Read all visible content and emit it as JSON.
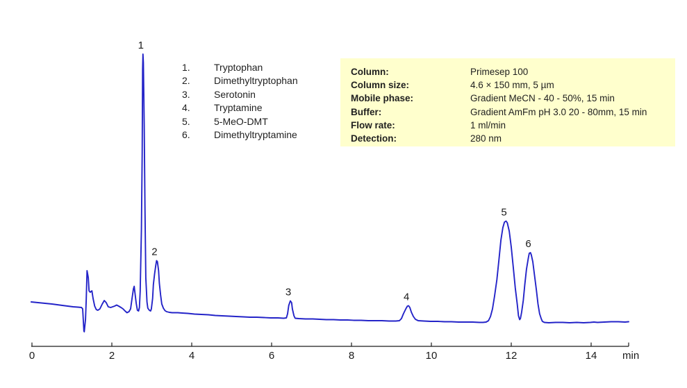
{
  "chart_data": {
    "type": "line",
    "chart_kind": "hplc-chromatogram",
    "title": "",
    "xlabel": "min",
    "ylabel": "",
    "x_ticks": [
      0,
      2,
      4,
      6,
      8,
      10,
      12,
      14
    ],
    "xlim": [
      0,
      15
    ],
    "grid": false,
    "legend_position": "none",
    "trace_color": "#2323c8",
    "axis_color": "#1a1a1a",
    "peaks": [
      {
        "number": "1",
        "compound": "Tryptophan",
        "rt_min": 2.78,
        "apex_signal": 402
      },
      {
        "number": "2",
        "compound": "Dimethyltryptophan",
        "rt_min": 3.12,
        "apex_signal": 104.5
      },
      {
        "number": "3",
        "compound": "Serotonin",
        "rt_min": 6.47,
        "apex_signal": 46.5
      },
      {
        "number": "4",
        "compound": "Tryptamine",
        "rt_min": 9.43,
        "apex_signal": 39.5
      },
      {
        "number": "5",
        "compound": "5-MeO-DMT",
        "rt_min": 11.87,
        "apex_signal": 161.5
      },
      {
        "number": "6",
        "compound": "Dimethyltryptamine",
        "rt_min": 12.48,
        "apex_signal": 116
      }
    ],
    "trace": [
      [
        -0.02,
        45
      ],
      [
        0.24,
        43.5
      ],
      [
        0.5,
        42
      ],
      [
        0.76,
        40
      ],
      [
        1.03,
        38
      ],
      [
        1.15,
        37.5
      ],
      [
        1.24,
        37
      ],
      [
        1.27,
        35
      ],
      [
        1.3,
        3
      ],
      [
        1.31,
        2
      ],
      [
        1.34,
        20
      ],
      [
        1.36,
        50
      ],
      [
        1.38,
        90
      ],
      [
        1.41,
        80
      ],
      [
        1.43,
        61
      ],
      [
        1.46,
        59
      ],
      [
        1.5,
        61
      ],
      [
        1.53,
        50
      ],
      [
        1.57,
        39
      ],
      [
        1.61,
        34
      ],
      [
        1.65,
        33
      ],
      [
        1.7,
        35
      ],
      [
        1.76,
        42
      ],
      [
        1.81,
        47
      ],
      [
        1.86,
        44
      ],
      [
        1.91,
        38
      ],
      [
        1.97,
        37
      ],
      [
        2.02,
        38
      ],
      [
        2.07,
        39
      ],
      [
        2.12,
        40.5
      ],
      [
        2.17,
        39
      ],
      [
        2.23,
        37
      ],
      [
        2.28,
        35
      ],
      [
        2.33,
        32
      ],
      [
        2.38,
        29.5
      ],
      [
        2.43,
        31
      ],
      [
        2.47,
        35
      ],
      [
        2.5,
        48
      ],
      [
        2.54,
        64
      ],
      [
        2.56,
        67.5
      ],
      [
        2.57,
        62
      ],
      [
        2.61,
        43
      ],
      [
        2.64,
        33
      ],
      [
        2.67,
        32
      ],
      [
        2.69,
        37
      ],
      [
        2.71,
        60
      ],
      [
        2.74,
        150
      ],
      [
        2.76,
        260
      ],
      [
        2.77,
        380
      ],
      [
        2.78,
        402
      ],
      [
        2.79,
        390
      ],
      [
        2.81,
        300
      ],
      [
        2.83,
        180
      ],
      [
        2.85,
        80
      ],
      [
        2.88,
        45
      ],
      [
        2.9,
        36
      ],
      [
        2.94,
        33
      ],
      [
        2.97,
        32
      ],
      [
        2.99,
        35
      ],
      [
        3.02,
        50
      ],
      [
        3.04,
        70
      ],
      [
        3.07,
        85
      ],
      [
        3.1,
        98
      ],
      [
        3.12,
        104.5
      ],
      [
        3.14,
        103
      ],
      [
        3.17,
        90
      ],
      [
        3.19,
        72
      ],
      [
        3.22,
        55
      ],
      [
        3.25,
        42
      ],
      [
        3.29,
        36
      ],
      [
        3.33,
        32.5
      ],
      [
        3.37,
        31
      ],
      [
        3.44,
        30
      ],
      [
        3.51,
        29.5
      ],
      [
        3.58,
        29.5
      ],
      [
        3.65,
        29.5
      ],
      [
        3.76,
        29
      ],
      [
        3.9,
        28.5
      ],
      [
        4.07,
        27.5
      ],
      [
        4.24,
        27
      ],
      [
        4.42,
        26.5
      ],
      [
        4.59,
        25.5
      ],
      [
        4.76,
        25
      ],
      [
        4.94,
        24.5
      ],
      [
        5.11,
        24
      ],
      [
        5.29,
        23.5
      ],
      [
        5.46,
        23
      ],
      [
        5.63,
        23
      ],
      [
        5.81,
        22.5
      ],
      [
        5.98,
        22
      ],
      [
        6.16,
        22
      ],
      [
        6.3,
        21.5
      ],
      [
        6.37,
        22
      ],
      [
        6.4,
        28
      ],
      [
        6.43,
        40
      ],
      [
        6.47,
        46.5
      ],
      [
        6.5,
        44
      ],
      [
        6.52,
        35
      ],
      [
        6.56,
        25
      ],
      [
        6.59,
        21.5
      ],
      [
        6.68,
        21
      ],
      [
        6.85,
        20.5
      ],
      [
        7.03,
        20.5
      ],
      [
        7.2,
        20
      ],
      [
        7.37,
        19.5
      ],
      [
        7.55,
        19.5
      ],
      [
        7.72,
        19
      ],
      [
        7.9,
        19
      ],
      [
        8.07,
        18.5
      ],
      [
        8.24,
        18.5
      ],
      [
        8.42,
        18
      ],
      [
        8.59,
        18
      ],
      [
        8.76,
        18
      ],
      [
        8.94,
        17.5
      ],
      [
        9.11,
        17.5
      ],
      [
        9.2,
        18
      ],
      [
        9.25,
        21
      ],
      [
        9.3,
        28
      ],
      [
        9.36,
        35
      ],
      [
        9.4,
        39
      ],
      [
        9.43,
        39.5
      ],
      [
        9.46,
        37
      ],
      [
        9.5,
        30
      ],
      [
        9.55,
        24
      ],
      [
        9.6,
        20
      ],
      [
        9.67,
        18
      ],
      [
        9.81,
        17.5
      ],
      [
        9.98,
        17
      ],
      [
        10.16,
        17
      ],
      [
        10.33,
        16.5
      ],
      [
        10.5,
        16.5
      ],
      [
        10.68,
        16
      ],
      [
        10.85,
        16
      ],
      [
        11.03,
        16
      ],
      [
        11.2,
        15.5
      ],
      [
        11.29,
        15.5
      ],
      [
        11.37,
        16
      ],
      [
        11.43,
        18
      ],
      [
        11.48,
        24
      ],
      [
        11.53,
        35
      ],
      [
        11.58,
        53
      ],
      [
        11.64,
        77
      ],
      [
        11.69,
        105
      ],
      [
        11.74,
        134
      ],
      [
        11.79,
        152
      ],
      [
        11.83,
        160
      ],
      [
        11.87,
        161.5
      ],
      [
        11.9,
        159
      ],
      [
        11.95,
        147
      ],
      [
        12.0,
        124
      ],
      [
        12.05,
        95
      ],
      [
        12.1,
        65
      ],
      [
        12.15,
        42
      ],
      [
        12.18,
        25
      ],
      [
        12.21,
        19.5
      ],
      [
        12.23,
        21
      ],
      [
        12.26,
        30
      ],
      [
        12.3,
        47
      ],
      [
        12.34,
        70
      ],
      [
        12.38,
        92
      ],
      [
        12.43,
        109
      ],
      [
        12.45,
        115
      ],
      [
        12.48,
        116
      ],
      [
        12.5,
        113
      ],
      [
        12.54,
        103
      ],
      [
        12.58,
        84
      ],
      [
        12.63,
        62
      ],
      [
        12.67,
        42
      ],
      [
        12.71,
        28
      ],
      [
        12.75,
        21
      ],
      [
        12.78,
        17
      ],
      [
        12.83,
        15.5
      ],
      [
        12.94,
        15
      ],
      [
        13.11,
        15.5
      ],
      [
        13.29,
        15.5
      ],
      [
        13.46,
        15
      ],
      [
        13.64,
        15.5
      ],
      [
        13.81,
        15
      ],
      [
        13.98,
        15.5
      ],
      [
        14.07,
        16
      ],
      [
        14.16,
        15.5
      ],
      [
        14.33,
        16
      ],
      [
        14.5,
        16.5
      ],
      [
        14.68,
        16.5
      ],
      [
        14.85,
        16
      ],
      [
        14.94,
        16.5
      ]
    ]
  },
  "x_axis": {
    "tick_labels": [
      "0",
      "2",
      "4",
      "6",
      "8",
      "10",
      "12",
      "14"
    ],
    "unit_label": "min"
  },
  "peak_list": {
    "items": [
      {
        "number": "1.",
        "name": "Tryptophan"
      },
      {
        "number": "2.",
        "name": "Dimethyltryptophan"
      },
      {
        "number": "3.",
        "name": "Serotonin"
      },
      {
        "number": "4.",
        "name": "Tryptamine"
      },
      {
        "number": "5.",
        "name": "5-MeO-DMT"
      },
      {
        "number": "6.",
        "name": "Dimethyltryptamine"
      }
    ]
  },
  "method_info": {
    "background_color": "#ffffcd",
    "rows": [
      {
        "label": "Column:",
        "value": "Primesep 100"
      },
      {
        "label": "Column size:",
        "value": "4.6 × 150 mm, 5 µm"
      },
      {
        "label": "Mobile phase:",
        "value": "Gradient MeCN - 40 - 50%, 15 min"
      },
      {
        "label": "Buffer:",
        "value": "Gradient AmFm pH 3.0 20 - 80mm, 15 min"
      },
      {
        "label": "Flow rate:",
        "value": "1 ml/min"
      },
      {
        "label": "Detection:",
        "value": "280 nm"
      }
    ]
  }
}
